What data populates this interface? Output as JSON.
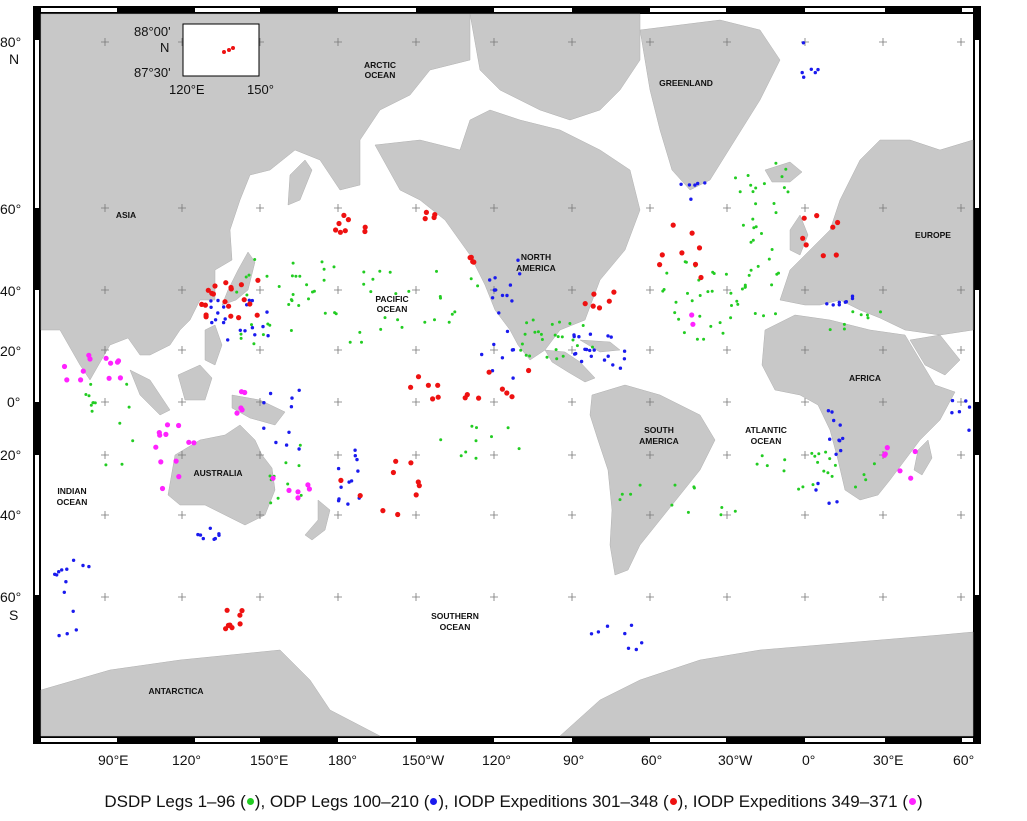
{
  "lat_labels": [
    {
      "value": "80°",
      "hemisphere": "N"
    },
    {
      "value": "60°",
      "hemisphere": ""
    },
    {
      "value": "40°",
      "hemisphere": ""
    },
    {
      "value": "20°",
      "hemisphere": ""
    },
    {
      "value": "0°",
      "hemisphere": ""
    },
    {
      "value": "20°",
      "hemisphere": ""
    },
    {
      "value": "40°",
      "hemisphere": ""
    },
    {
      "value": "60°",
      "hemisphere": "S"
    }
  ],
  "lon_labels": [
    "90°E",
    "120°",
    "150°E",
    "180°",
    "150°W",
    "120°",
    "90°",
    "60°",
    "30°W",
    "0°",
    "30°E",
    "60°"
  ],
  "regions": {
    "asia": "ASIA",
    "arctic": "ARCTIC\nOCEAN",
    "greenland": "GREENLAND",
    "europe": "EUROPE",
    "north_america": "NORTH\nAMERICA",
    "pacific": "PACIFIC\nOCEAN",
    "africa": "AFRICA",
    "south_america": "SOUTH\nAMERICA",
    "atlantic": "ATLANTIC\nOCEAN",
    "australia": "AUSTRALIA",
    "indian": "INDIAN\nOCEAN",
    "southern": "SOUTHERN\nOCEAN",
    "antarctica": "ANTARCTICA"
  },
  "inset": {
    "lat_top": "88°00'",
    "lat_hemi": "N",
    "lat_bottom": "87°30'",
    "lon_left": "120°E",
    "lon_right": "150°"
  },
  "legend": {
    "dsdp": "DSDP Legs 1–96",
    "odp": "ODP Legs 100–210",
    "iodp1": "IODP Expeditions 301–348",
    "iodp2": "IODP Expeditions 349–371",
    "open": "(",
    "close_sep": "),",
    "close_end": ")"
  },
  "colors": {
    "land": "#c8c8c8",
    "ocean": "#ffffff",
    "dsdp": "#22cc22",
    "odp": "#1a1aee",
    "iodp1": "#ee1111",
    "iodp2": "#ff22ff"
  }
}
